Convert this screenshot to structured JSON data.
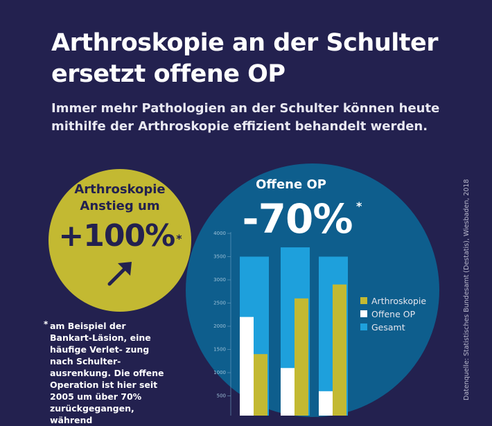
{
  "headline": {
    "title": "Arthroskopie an der Schulter ersetzt offene OP",
    "subtitle": "Immer mehr Pathologien an der Schulter können heute mithilfe der Arthroskopie effizient behandelt werden."
  },
  "arthroskopie_badge": {
    "label": "Arthroskopie Anstieg um",
    "value": "+100%",
    "marker": "*",
    "icon": "arrow-up-right-icon",
    "color": "#c3b932"
  },
  "offene_op_badge": {
    "label": "Offene OP",
    "value": "-70%",
    "marker": "*",
    "color": "#0e5e8d"
  },
  "footnote": {
    "marker": "*",
    "text": "am Beispiel der Bankart-Läsion, eine häufige Verlet- zung nach Schulter- ausrenkung. Die offene Operation ist hier seit 2005 um über 70% zurückgegangen, während"
  },
  "source": "Datenquelle: Statistisches Bundesamt (Destatis), Wiesbaden, 2018",
  "chart_data": {
    "type": "bar",
    "ylim": [
      0,
      4000
    ],
    "y_ticks": [
      500,
      1000,
      1500,
      2000,
      2500,
      3000,
      3500,
      4000
    ],
    "y_tick_labels": [
      "500",
      "1000",
      "1500",
      "2000",
      "2500",
      "3000",
      "3500",
      "4000"
    ],
    "groups": [
      {
        "gesamt": 3500,
        "offene_op": 2200,
        "arthroskopie": 1400
      },
      {
        "gesamt": 3700,
        "offene_op": 1100,
        "arthroskopie": 2600
      },
      {
        "gesamt": 3500,
        "offene_op": 600,
        "arthroskopie": 2900
      }
    ],
    "legend": [
      {
        "key": "arthroskopie",
        "label": "Arthroskopie",
        "color": "#c3b932"
      },
      {
        "key": "offene_op",
        "label": "Offene OP",
        "color": "#ffffff"
      },
      {
        "key": "gesamt",
        "label": "Gesamt",
        "color": "#1ea0dc"
      }
    ]
  }
}
